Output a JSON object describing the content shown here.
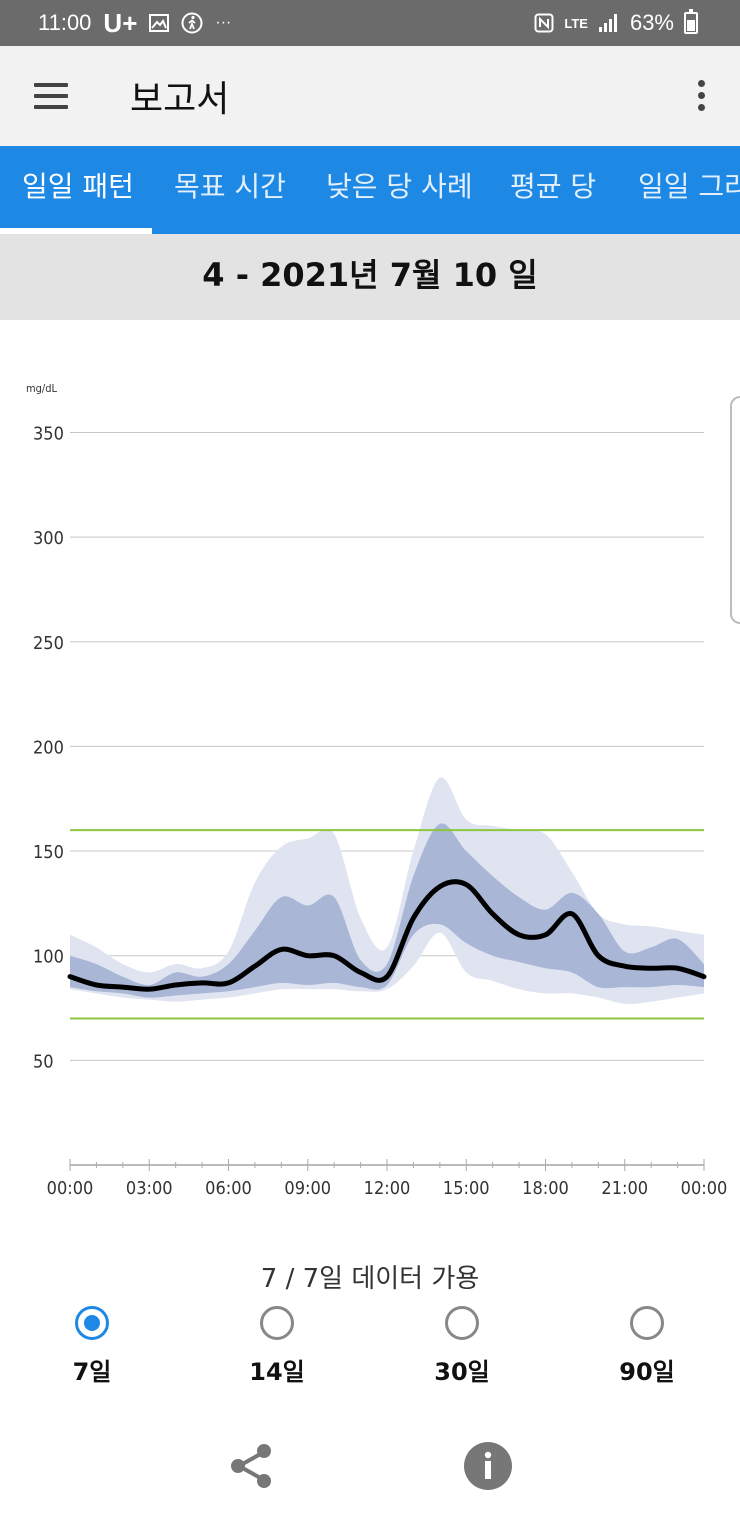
{
  "status_bar": {
    "time": "11:00",
    "carrier": "U+",
    "more": "···",
    "network": "LTE",
    "battery": "63%"
  },
  "app_bar": {
    "title": "보고서",
    "menu_icon": "hamburger-menu-icon",
    "more_icon": "more-vert-icon"
  },
  "tabs": [
    {
      "label": "일일 패턴",
      "active": true
    },
    {
      "label": "목표 시간",
      "active": false
    },
    {
      "label": "낮은 당 사례",
      "active": false
    },
    {
      "label": "평균 당",
      "active": false
    },
    {
      "label": "일일 그라",
      "active": false
    }
  ],
  "date_range": "4 - 2021년 7월 10 일",
  "chart_data": {
    "type": "area",
    "ylabel": "mg/dL",
    "y_ticks": [
      350,
      300,
      250,
      200,
      150,
      100,
      50
    ],
    "ylim": [
      0,
      350
    ],
    "x_ticks": [
      "00:00",
      "03:00",
      "06:00",
      "09:00",
      "12:00",
      "15:00",
      "18:00",
      "21:00",
      "00:00"
    ],
    "xlim": [
      0,
      24
    ],
    "target_range": [
      70,
      160
    ],
    "colors": {
      "median": "#000000",
      "iqr": "#a9b6d6",
      "outer": "#dfe4f0",
      "target": "#8cc63f",
      "grid": "#c8c8c8"
    },
    "hours": [
      0,
      1,
      2,
      3,
      4,
      5,
      6,
      7,
      8,
      9,
      10,
      11,
      12,
      13,
      14,
      15,
      16,
      17,
      18,
      19,
      20,
      21,
      22,
      23,
      24
    ],
    "series": [
      {
        "role": "p90",
        "values": [
          110,
          104,
          96,
          92,
          96,
          94,
          102,
          135,
          152,
          156,
          158,
          118,
          104,
          150,
          185,
          165,
          162,
          160,
          158,
          140,
          120,
          115,
          114,
          112,
          110
        ]
      },
      {
        "role": "p75",
        "values": [
          100,
          96,
          90,
          86,
          92,
          90,
          96,
          112,
          128,
          124,
          128,
          98,
          96,
          138,
          163,
          150,
          138,
          128,
          122,
          130,
          120,
          102,
          104,
          108,
          96
        ]
      },
      {
        "role": "median",
        "values": [
          90,
          86,
          85,
          84,
          86,
          87,
          87,
          95,
          103,
          100,
          100,
          92,
          90,
          118,
          133,
          134,
          120,
          110,
          110,
          120,
          100,
          95,
          94,
          94,
          90
        ]
      },
      {
        "role": "p25",
        "values": [
          85,
          83,
          82,
          80,
          81,
          82,
          83,
          85,
          87,
          86,
          87,
          85,
          86,
          110,
          115,
          106,
          100,
          97,
          94,
          92,
          85,
          85,
          85,
          86,
          85
        ]
      },
      {
        "role": "p10",
        "values": [
          84,
          82,
          80,
          79,
          78,
          79,
          80,
          82,
          84,
          84,
          84,
          83,
          84,
          95,
          111,
          92,
          88,
          84,
          82,
          82,
          80,
          77,
          78,
          80,
          82
        ]
      }
    ]
  },
  "data_available": "7 / 7일 데이터 가용",
  "period_options": [
    {
      "label": "7일",
      "checked": true
    },
    {
      "label": "14일",
      "checked": false
    },
    {
      "label": "30일",
      "checked": false
    },
    {
      "label": "90일",
      "checked": false
    }
  ],
  "actions": {
    "share_icon": "share-icon",
    "info_icon": "info-icon"
  }
}
